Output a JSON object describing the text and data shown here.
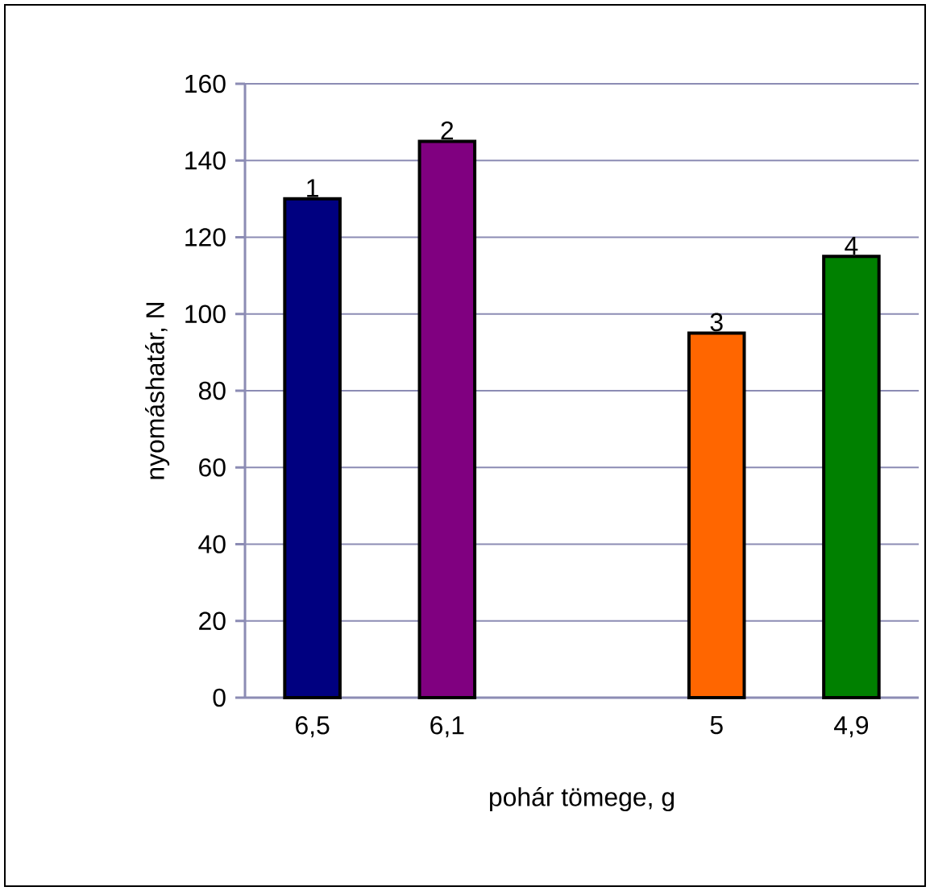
{
  "chart_data": {
    "type": "bar",
    "xlabel": "pohár tömege, g",
    "ylabel": "nyomáshatár, N",
    "categories": [
      "6,5",
      "6,1",
      null,
      "5",
      "4,9"
    ],
    "values": [
      130,
      145,
      null,
      95,
      115
    ],
    "colors": [
      "#000080",
      "#800080",
      null,
      "#ff6600",
      "#008000"
    ],
    "ylim": [
      0,
      160
    ],
    "yticks": [
      0,
      20,
      40,
      60,
      80,
      100,
      120,
      140,
      160
    ],
    "grid": "y",
    "annotations": [
      {
        "text": "1",
        "x": "6,5",
        "y": 130
      },
      {
        "text": "2",
        "x": "6,1",
        "y": 145
      },
      {
        "text": "3",
        "x": "5",
        "y": 95
      },
      {
        "text": "4",
        "x": "4,9",
        "y": 115
      }
    ]
  }
}
